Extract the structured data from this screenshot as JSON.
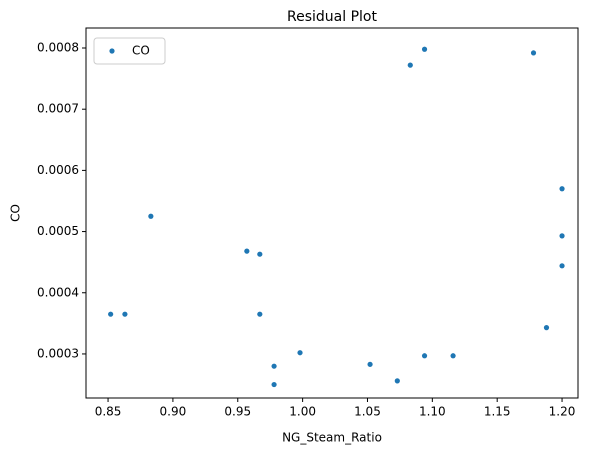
{
  "chart_data": {
    "type": "scatter",
    "title": "Residual Plot",
    "x_label": "NG_Steam_Ratio",
    "y_label": "CO",
    "series": [
      {
        "name": "CO",
        "color": "#1f77b4",
        "x": [
          0.852,
          0.863,
          0.883,
          0.957,
          0.967,
          0.967,
          0.978,
          0.978,
          0.998,
          1.052,
          1.073,
          1.083,
          1.094,
          1.094,
          1.116,
          1.178,
          1.188,
          1.2,
          1.2,
          1.2
        ],
        "values": [
          0.000365,
          0.000365,
          0.000525,
          0.000468,
          0.000463,
          0.000365,
          0.00028,
          0.00025,
          0.000302,
          0.000283,
          0.000256,
          0.000772,
          0.000798,
          0.000297,
          0.000297,
          0.000792,
          0.000343,
          0.00057,
          0.000493,
          0.000444
        ]
      }
    ],
    "xlim": [
      0.833,
      1.2123
    ],
    "ylim": [
      0.000228,
      0.0008327
    ],
    "xticks": [
      0.85,
      {
        "value": 0.9,
        "label": "0.90"
      },
      0.95,
      {
        "value": 1.0,
        "label": "1.00"
      },
      1.05,
      {
        "value": 1.1,
        "label": "1.10"
      },
      1.15,
      {
        "value": 1.2,
        "label": "1.20"
      }
    ],
    "yticks": [
      0.0003,
      0.0004,
      0.0005,
      0.0006,
      0.0007,
      0.0008
    ],
    "legend": "upper-left"
  }
}
